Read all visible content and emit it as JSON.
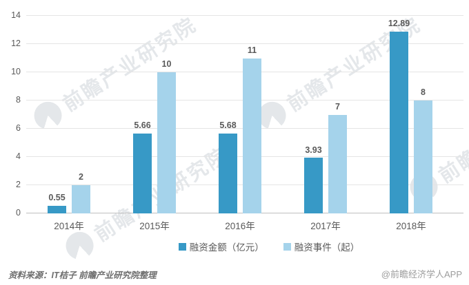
{
  "chart_data": {
    "type": "bar",
    "categories": [
      "2014年",
      "2015年",
      "2016年",
      "2017年",
      "2018年"
    ],
    "series": [
      {
        "name": "融资金额（亿元）",
        "color": "#3799c6",
        "values": [
          0.55,
          5.66,
          5.68,
          3.93,
          12.89
        ],
        "labels": [
          "0.55",
          "5.66",
          "5.68",
          "3.93",
          "12.89"
        ]
      },
      {
        "name": "融资事件（起）",
        "color": "#a5d3eb",
        "values": [
          2,
          10,
          11,
          7,
          8
        ],
        "labels": [
          "2",
          "10",
          "11",
          "7",
          "8"
        ]
      }
    ],
    "title": "",
    "xlabel": "",
    "ylabel": "",
    "ylim": [
      0,
      14
    ],
    "ytick_step": 2,
    "grid": true,
    "legend_position": "bottom"
  },
  "watermark": {
    "text": "前瞻产业研究院"
  },
  "footer": {
    "source": "资料来源：IT桔子 前瞻产业研究院整理",
    "credit": "@前瞻经济学人APP"
  },
  "colors": {
    "bar_dark": "#3799c6",
    "bar_light": "#a5d3eb",
    "gridline": "#e4e4e4",
    "axis_line": "#bfbfbf",
    "text_gray": "#595959"
  }
}
